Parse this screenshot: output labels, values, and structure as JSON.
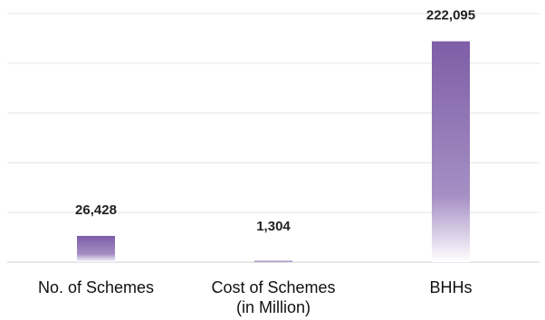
{
  "chart_data": {
    "type": "bar",
    "categories": [
      [
        "No. of Schemes"
      ],
      [
        "Cost of Schemes",
        "(in Million)"
      ],
      [
        "BHHs"
      ]
    ],
    "values": [
      26428,
      1304,
      222095
    ],
    "data_labels": [
      "26,428",
      "1,304",
      "222,095"
    ],
    "ylim": [
      0,
      250000
    ],
    "grid": true,
    "bar_color": "#7e5ea7"
  }
}
